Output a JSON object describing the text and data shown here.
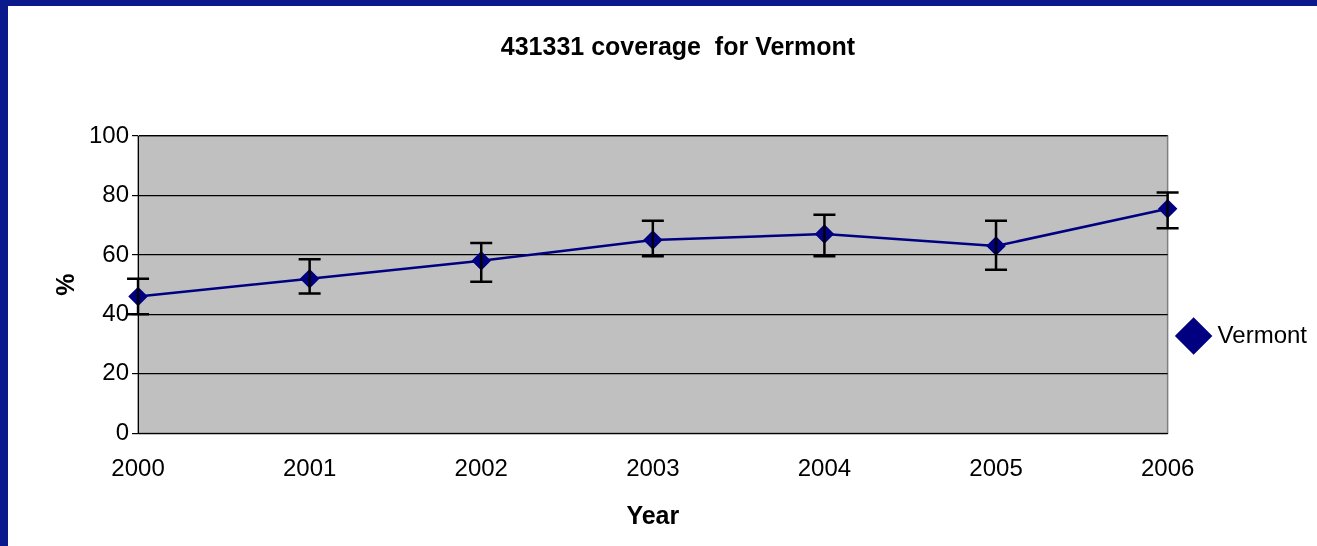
{
  "chart_data": {
    "type": "line",
    "title": "431331 coverage  for Vermont",
    "xlabel": "Year",
    "ylabel": "%",
    "categories": [
      "2000",
      "2001",
      "2002",
      "2003",
      "2004",
      "2005",
      "2006"
    ],
    "series": [
      {
        "name": "Vermont",
        "color": "#000080",
        "values": [
          46,
          52,
          58,
          65,
          67,
          63,
          75.5
        ],
        "errors": [
          [
            40,
            52
          ],
          [
            47,
            58.5
          ],
          [
            51,
            64
          ],
          [
            59.5,
            71.5
          ],
          [
            59.5,
            73.5
          ],
          [
            55,
            71.5
          ],
          [
            69,
            81
          ]
        ]
      }
    ],
    "ylim": [
      0,
      100
    ],
    "yticks": [
      0,
      20,
      40,
      60,
      80,
      100
    ],
    "grid": "y",
    "legend": "right",
    "marker": "diamond",
    "line_style": "solid"
  }
}
